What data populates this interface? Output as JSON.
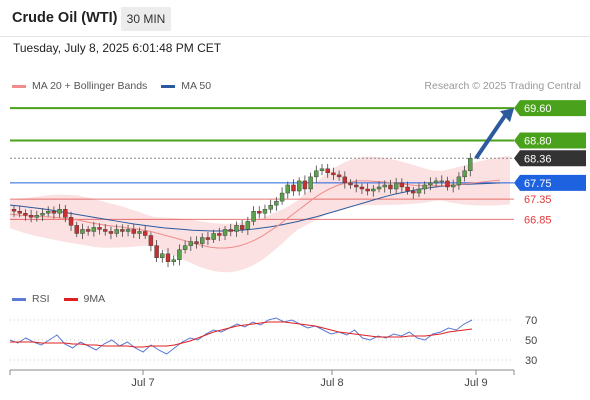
{
  "header": {
    "title": "Crude Oil (WTI)",
    "timeframe": "30 MIN",
    "datetime": "Tuesday, July 8, 2025 6:01:48 PM CET"
  },
  "legend": {
    "items": [
      {
        "label": "MA 20 + Bollinger Bands",
        "color": "#f08c8c"
      },
      {
        "label": "MA 50",
        "color": "#2c5a9e"
      }
    ],
    "copyright": "Research © 2025 Trading Central"
  },
  "chart_data": [
    {
      "type": "candlestick",
      "levels": [
        {
          "value": 69.6,
          "label": "69.60",
          "kind": "resistance",
          "color": "#4aa11c"
        },
        {
          "value": 68.8,
          "label": "68.80",
          "kind": "resistance",
          "color": "#4aa11c"
        },
        {
          "value": 68.36,
          "label": "68.36",
          "kind": "last-price",
          "color": "#333333"
        },
        {
          "value": 67.75,
          "label": "67.75",
          "kind": "pivot",
          "color": "#1f62e0"
        },
        {
          "value": 67.35,
          "label": "67.35",
          "kind": "support",
          "color": "#e03a3a"
        },
        {
          "value": 66.85,
          "label": "66.85",
          "kind": "support",
          "color": "#e03a3a"
        }
      ],
      "ylim": [
        65.3,
        69.9
      ],
      "x_ticks": [
        "Jul 7",
        "Jul 8",
        "Jul 9"
      ],
      "candles_close": [
        67.05,
        67.0,
        66.95,
        66.9,
        66.95,
        67.0,
        67.05,
        67.0,
        67.1,
        66.9,
        66.7,
        66.5,
        66.6,
        66.55,
        66.65,
        66.6,
        66.55,
        66.5,
        66.6,
        66.55,
        66.6,
        66.5,
        66.55,
        66.45,
        66.2,
        65.9,
        66.0,
        65.8,
        65.85,
        66.1,
        66.2,
        66.3,
        66.25,
        66.4,
        66.35,
        66.5,
        66.45,
        66.6,
        66.55,
        66.7,
        66.6,
        66.8,
        67.05,
        67.0,
        67.1,
        67.2,
        67.3,
        67.5,
        67.7,
        67.55,
        67.8,
        67.6,
        67.9,
        68.05,
        68.1,
        68.0,
        67.95,
        67.9,
        67.75,
        67.7,
        67.65,
        67.6,
        67.55,
        67.6,
        67.65,
        67.7,
        67.6,
        67.75,
        67.65,
        67.55,
        67.5,
        67.6,
        67.7,
        67.75,
        67.8,
        67.8,
        67.65,
        67.7,
        67.9,
        68.05,
        68.36
      ],
      "ma20": [
        66.98,
        66.96,
        66.94,
        66.93,
        66.92,
        66.91,
        66.9,
        66.88,
        66.86,
        66.84,
        66.8,
        66.76,
        66.73,
        66.7,
        66.68,
        66.66,
        66.63,
        66.61,
        66.58,
        66.55,
        66.5,
        66.45,
        66.4,
        66.35,
        66.3,
        66.24,
        66.2,
        66.16,
        66.14,
        66.14,
        66.16,
        66.2,
        66.26,
        66.34,
        66.44,
        66.56,
        66.68,
        66.82,
        66.96,
        67.1,
        67.24,
        67.38,
        67.5,
        67.6,
        67.68,
        67.74,
        67.78,
        67.8,
        67.8,
        67.79,
        67.78,
        67.76,
        67.74,
        67.72,
        67.7,
        67.68,
        67.68,
        67.68,
        67.68,
        67.69,
        67.7,
        67.72,
        67.74,
        67.76,
        67.78,
        67.8,
        67.82
      ],
      "ma50": [
        67.2,
        67.18,
        67.15,
        67.12,
        67.09,
        67.05,
        67.01,
        66.97,
        66.93,
        66.89,
        66.85,
        66.81,
        66.77,
        66.73,
        66.7,
        66.67,
        66.64,
        66.62,
        66.6,
        66.58,
        66.57,
        66.56,
        66.56,
        66.57,
        66.58,
        66.6,
        66.63,
        66.66,
        66.7,
        66.75,
        66.8,
        66.86,
        66.92,
        66.99,
        67.06,
        67.13,
        67.2,
        67.27,
        67.34,
        67.41,
        67.47,
        67.52,
        67.57,
        67.61,
        67.64,
        67.67,
        67.69,
        67.71,
        67.72,
        67.73,
        67.74,
        67.75
      ]
    },
    {
      "type": "line",
      "series": [
        {
          "name": "RSI",
          "color": "#5b7bd5"
        },
        {
          "name": "9MA",
          "color": "#e02020"
        }
      ],
      "y_ticks": [
        "70",
        "50",
        "30"
      ],
      "ylim": [
        20,
        80
      ],
      "rsi": [
        50,
        47,
        52,
        48,
        45,
        50,
        55,
        46,
        42,
        48,
        44,
        40,
        46,
        50,
        44,
        48,
        42,
        38,
        45,
        40,
        36,
        42,
        48,
        52,
        50,
        56,
        60,
        58,
        62,
        66,
        63,
        68,
        65,
        70,
        72,
        68,
        70,
        66,
        62,
        64,
        60,
        56,
        58,
        55,
        60,
        52,
        50,
        54,
        52,
        56,
        54,
        58,
        52,
        50,
        56,
        58,
        62,
        60,
        66,
        70
      ],
      "ma9": [
        48,
        48,
        48,
        48,
        47,
        47,
        47,
        47,
        46,
        46,
        45,
        45,
        44,
        44,
        44,
        44,
        43,
        43,
        44,
        44,
        44,
        45,
        47,
        49,
        52,
        55,
        58,
        60,
        62,
        64,
        65,
        66,
        67,
        68,
        68,
        68,
        67,
        66,
        65,
        64,
        62,
        60,
        58,
        57,
        56,
        55,
        54,
        53,
        53,
        53,
        53,
        54,
        54,
        54,
        55,
        56,
        58,
        59,
        60,
        61
      ]
    }
  ],
  "rsi_legend": [
    {
      "label": "RSI",
      "color": "#5b7bd5"
    },
    {
      "label": "9MA",
      "color": "#e02020"
    }
  ]
}
